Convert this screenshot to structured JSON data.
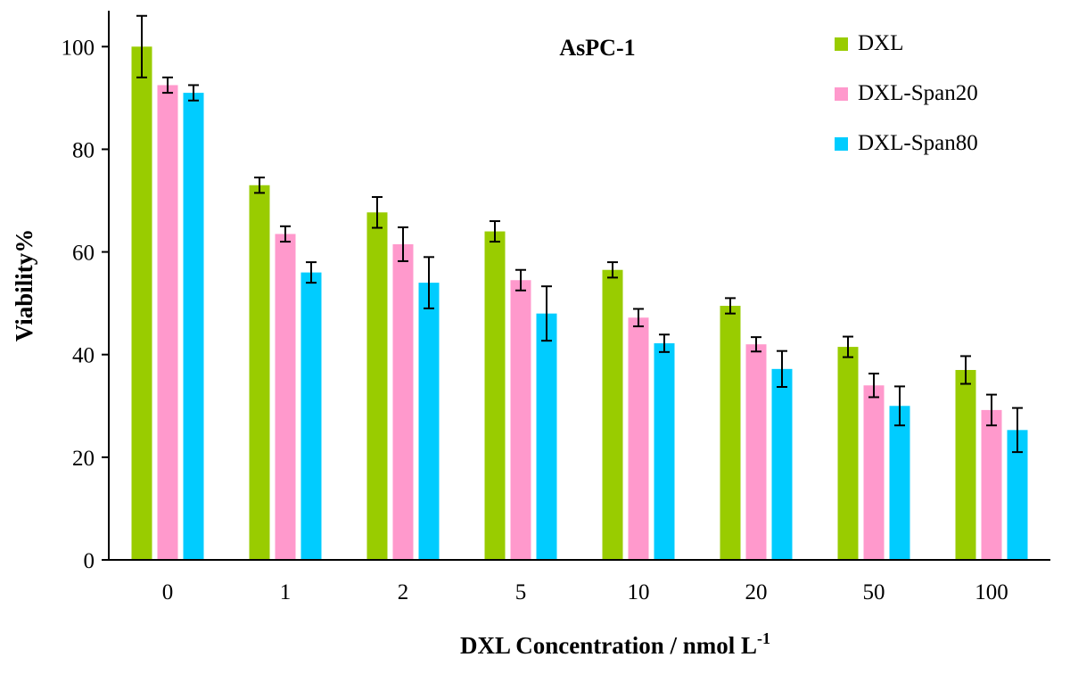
{
  "chart_data": {
    "type": "bar",
    "title": "AsPC-1",
    "xlabel_main": "DXL Concentration / nmol L",
    "xlabel_sup": "-1",
    "ylabel": "Viability%",
    "ylim": [
      0,
      107
    ],
    "yticks": [
      0,
      20,
      40,
      60,
      80,
      100
    ],
    "categories": [
      "0",
      "1",
      "2",
      "5",
      "10",
      "20",
      "50",
      "100"
    ],
    "grid": false,
    "legend_position": "top-right",
    "series": [
      {
        "name": "DXL",
        "color": "#99CC00",
        "values": [
          100,
          73,
          67.7,
          64,
          56.5,
          49.5,
          41.5,
          37
        ],
        "errors": [
          6,
          1.5,
          3,
          2,
          1.5,
          1.5,
          2,
          2.7
        ]
      },
      {
        "name": "DXL-Span20",
        "color": "#FF99CC",
        "values": [
          92.5,
          63.5,
          61.5,
          54.5,
          47.2,
          42,
          34,
          29.2
        ],
        "errors": [
          1.5,
          1.5,
          3.3,
          2,
          1.7,
          1.4,
          2.3,
          3
        ]
      },
      {
        "name": "DXL-Span80",
        "color": "#00CCFF",
        "values": [
          91,
          56,
          54,
          48,
          42.2,
          37.2,
          30,
          25.3
        ],
        "errors": [
          1.5,
          2,
          5,
          5.3,
          1.7,
          3.5,
          3.8,
          4.3
        ]
      }
    ]
  }
}
